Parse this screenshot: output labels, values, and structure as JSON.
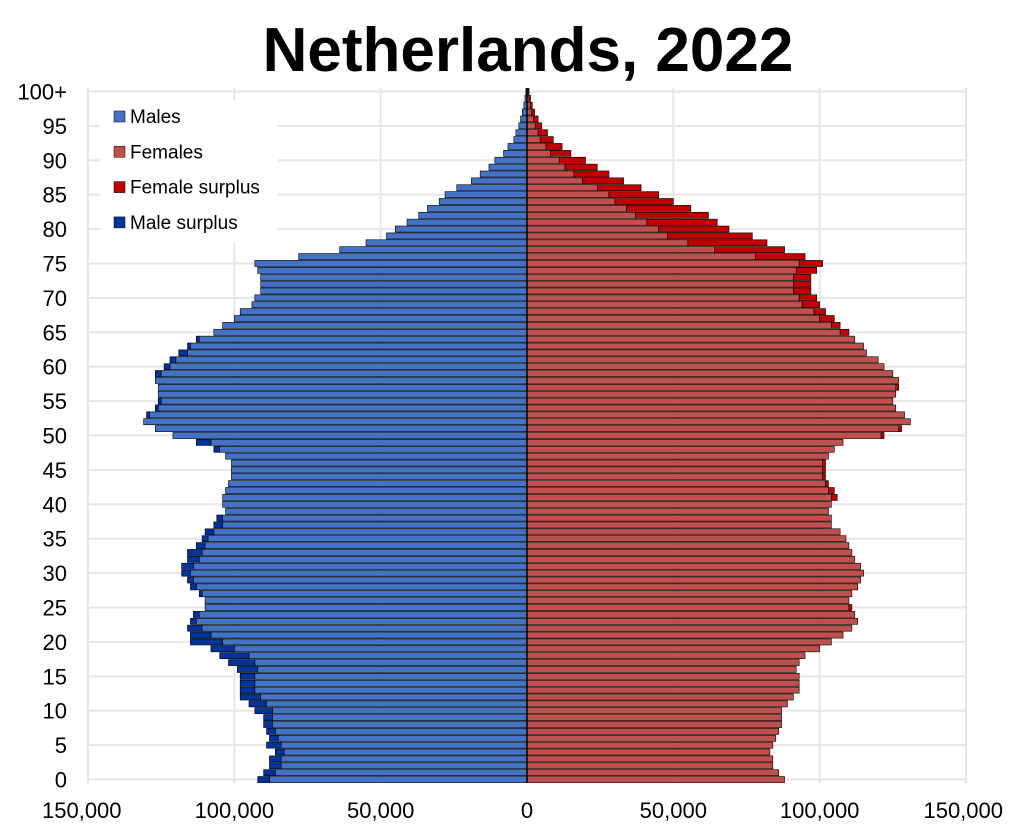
{
  "chart_data": {
    "type": "bar",
    "orientation": "horizontal",
    "subtype": "population-pyramid",
    "title": "Netherlands, 2022",
    "xlim": [
      -150000,
      150000
    ],
    "x_ticks": [
      {
        "value": -150000,
        "label": "150,000"
      },
      {
        "value": -100000,
        "label": "100,000"
      },
      {
        "value": -50000,
        "label": "50,000"
      },
      {
        "value": 0,
        "label": "0"
      },
      {
        "value": 50000,
        "label": "50,000"
      },
      {
        "value": 100000,
        "label": "100,000"
      },
      {
        "value": 150000,
        "label": "150,000"
      }
    ],
    "y_ticks": [
      {
        "age": 0,
        "label": "0"
      },
      {
        "age": 5,
        "label": "5"
      },
      {
        "age": 10,
        "label": "10"
      },
      {
        "age": 15,
        "label": "15"
      },
      {
        "age": 20,
        "label": "20"
      },
      {
        "age": 25,
        "label": "25"
      },
      {
        "age": 30,
        "label": "30"
      },
      {
        "age": 35,
        "label": "35"
      },
      {
        "age": 40,
        "label": "40"
      },
      {
        "age": 45,
        "label": "45"
      },
      {
        "age": 50,
        "label": "50"
      },
      {
        "age": 55,
        "label": "55"
      },
      {
        "age": 60,
        "label": "60"
      },
      {
        "age": 65,
        "label": "65"
      },
      {
        "age": 70,
        "label": "70"
      },
      {
        "age": 75,
        "label": "75"
      },
      {
        "age": 80,
        "label": "80"
      },
      {
        "age": 85,
        "label": "85"
      },
      {
        "age": 90,
        "label": "90"
      },
      {
        "age": 95,
        "label": "95"
      },
      {
        "age": 100,
        "label": "100+"
      }
    ],
    "grid": true,
    "legend_position": "top-left",
    "legend": [
      {
        "label": "Males",
        "color": "#4472c4"
      },
      {
        "label": "Females",
        "color": "#c0504d"
      },
      {
        "label": "Female surplus",
        "color": "#c00000"
      },
      {
        "label": "Male surplus",
        "color": "#003399"
      }
    ],
    "colors": {
      "males": "#4472c4",
      "females": "#c0504d",
      "female_surplus": "#c00000",
      "male_surplus": "#003399",
      "bar_outline": "#000000"
    },
    "ages": [
      0,
      1,
      2,
      3,
      4,
      5,
      6,
      7,
      8,
      9,
      10,
      11,
      12,
      13,
      14,
      15,
      16,
      17,
      18,
      19,
      20,
      21,
      22,
      23,
      24,
      25,
      26,
      27,
      28,
      29,
      30,
      31,
      32,
      33,
      34,
      35,
      36,
      37,
      38,
      39,
      40,
      41,
      42,
      43,
      44,
      45,
      46,
      47,
      48,
      49,
      50,
      51,
      52,
      53,
      54,
      55,
      56,
      57,
      58,
      59,
      60,
      61,
      62,
      63,
      64,
      65,
      66,
      67,
      68,
      69,
      70,
      71,
      72,
      73,
      74,
      75,
      76,
      77,
      78,
      79,
      80,
      81,
      82,
      83,
      84,
      85,
      86,
      87,
      88,
      89,
      90,
      91,
      92,
      93,
      94,
      95,
      96,
      97,
      98,
      99,
      100
    ],
    "series": [
      {
        "name": "Males",
        "values": [
          92000,
          90000,
          88000,
          88000,
          86000,
          89000,
          88000,
          89000,
          90000,
          90000,
          93000,
          95000,
          98000,
          98000,
          98000,
          98000,
          99000,
          102000,
          105000,
          108000,
          115000,
          115000,
          116000,
          115000,
          114000,
          110000,
          110000,
          112000,
          115000,
          116000,
          118000,
          118000,
          116000,
          116000,
          113000,
          111000,
          110000,
          107000,
          106000,
          103000,
          104000,
          104000,
          103000,
          102000,
          101000,
          101000,
          101000,
          103000,
          107000,
          113000,
          121000,
          127000,
          131000,
          130000,
          127000,
          126000,
          126000,
          126000,
          127000,
          127000,
          124000,
          122000,
          119000,
          116000,
          113000,
          107000,
          104000,
          100000,
          98000,
          94000,
          93000,
          91000,
          91000,
          91000,
          92000,
          93000,
          78000,
          64000,
          55000,
          48000,
          45000,
          41000,
          37000,
          34000,
          30000,
          28000,
          24000,
          19000,
          16000,
          13000,
          11000,
          8000,
          6500,
          4500,
          3800,
          2800,
          2200,
          1600,
          1100,
          700,
          400
        ]
      },
      {
        "name": "Females",
        "values": [
          88000,
          86000,
          84000,
          84000,
          83000,
          84000,
          85000,
          86000,
          87000,
          87000,
          87000,
          89000,
          91000,
          93000,
          93000,
          93000,
          92000,
          93000,
          95000,
          100000,
          104000,
          108000,
          111000,
          113000,
          112000,
          111000,
          110000,
          111000,
          113000,
          114000,
          115000,
          114000,
          112000,
          111000,
          110000,
          109000,
          107000,
          104000,
          104000,
          103000,
          104000,
          106000,
          105000,
          103000,
          102000,
          102000,
          102000,
          103000,
          105000,
          108000,
          122000,
          128000,
          131000,
          129000,
          126000,
          125000,
          126000,
          127000,
          127000,
          125000,
          122000,
          120000,
          116000,
          115000,
          112000,
          110000,
          107000,
          105000,
          102000,
          100000,
          99000,
          97000,
          97000,
          97000,
          99000,
          101000,
          95000,
          88000,
          82000,
          77000,
          69000,
          65000,
          62000,
          56000,
          50000,
          45000,
          39000,
          33000,
          28000,
          24000,
          20000,
          15000,
          12000,
          9000,
          7000,
          5000,
          3800,
          2600,
          1800,
          1200,
          700
        ]
      }
    ]
  }
}
